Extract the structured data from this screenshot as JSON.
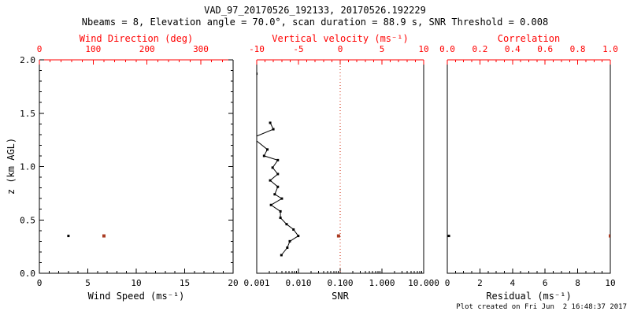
{
  "title": "VAD_97_20170526_192133, 20170526.192229",
  "subtitle": "Nbeams = 8, Elevation angle = 70.0°, scan duration = 88.9 s, SNR Threshold = 0.008",
  "footer": "Plot created on Fri Jun  2 16:48:37 2017",
  "colors": {
    "axis": "#000000",
    "axis_top": "#ff0000",
    "marker": "#000000",
    "marker_accent": "#aa3b22",
    "refline": "#cc2200",
    "background": "#ffffff"
  },
  "y_axis": {
    "title": "z (km AGL)",
    "min": 0,
    "max": 2,
    "minor_step": 0.1,
    "majors": [
      {
        "v": 0.0,
        "label": "0.0"
      },
      {
        "v": 0.5,
        "label": "0.5"
      },
      {
        "v": 1.0,
        "label": "1.0"
      },
      {
        "v": 1.5,
        "label": "1.5"
      },
      {
        "v": 2.0,
        "label": "2.0"
      }
    ]
  },
  "chart_data": [
    {
      "name": "wind",
      "type": "scatter",
      "show_y_ticks": true,
      "bottom_axis": {
        "title": "Wind Speed (ms⁻¹)",
        "min": 0,
        "max": 20,
        "scale": "linear",
        "minor_step": 1,
        "majors": [
          {
            "v": 0,
            "label": "0"
          },
          {
            "v": 5,
            "label": "5"
          },
          {
            "v": 10,
            "label": "10"
          },
          {
            "v": 15,
            "label": "15"
          },
          {
            "v": 20,
            "label": "20"
          }
        ]
      },
      "top_axis": {
        "title": "Wind Direction (deg)",
        "min": 0,
        "max": 360,
        "scale": "linear",
        "minor_step": 20,
        "majors": [
          {
            "v": 0,
            "label": "0"
          },
          {
            "v": 100,
            "label": "100"
          },
          {
            "v": 200,
            "label": "200"
          },
          {
            "v": 300,
            "label": "300"
          }
        ]
      },
      "series": [
        {
          "name": "wind-speed",
          "axis": "bottom",
          "color_key": "marker",
          "marker": 3,
          "line": false,
          "points": [
            [
              3.0,
              0.35
            ]
          ]
        },
        {
          "name": "wind-direction",
          "axis": "top",
          "color_key": "marker_accent",
          "marker": 4,
          "line": false,
          "points": [
            [
              120,
              0.35
            ]
          ]
        }
      ]
    },
    {
      "name": "snr",
      "type": "line",
      "show_y_ticks": false,
      "bottom_axis": {
        "title": "SNR",
        "min": 0.001,
        "max": 10,
        "scale": "log",
        "majors": [
          {
            "v": 0.001,
            "label": "0.001"
          },
          {
            "v": 0.01,
            "label": "0.010"
          },
          {
            "v": 0.1,
            "label": "0.100"
          },
          {
            "v": 1,
            "label": "1.000"
          },
          {
            "v": 10,
            "label": "10.000"
          }
        ]
      },
      "top_axis": {
        "title": "Vertical velocity (ms⁻¹)",
        "min": -10,
        "max": 10,
        "scale": "linear",
        "minor_step": 1,
        "majors": [
          {
            "v": -10,
            "label": "-10"
          },
          {
            "v": -5,
            "label": "-5"
          },
          {
            "v": 0,
            "label": "0"
          },
          {
            "v": 5,
            "label": "5"
          },
          {
            "v": 10,
            "label": "10"
          }
        ]
      },
      "refline": {
        "axis": "top",
        "value": 0
      },
      "series": [
        {
          "name": "snr-profile",
          "axis": "bottom",
          "color_key": "marker",
          "marker": 3,
          "line": true,
          "points": [
            [
              0.0039,
              0.17
            ],
            [
              0.0054,
              0.24
            ],
            [
              0.0062,
              0.3
            ],
            [
              0.0099,
              0.35
            ],
            [
              0.0076,
              0.41
            ],
            [
              0.0052,
              0.46
            ],
            [
              0.0037,
              0.52
            ],
            [
              0.0037,
              0.58
            ],
            [
              0.0022,
              0.64
            ],
            [
              0.004,
              0.7
            ],
            [
              0.0027,
              0.74
            ],
            [
              0.0032,
              0.81
            ],
            [
              0.0021,
              0.87
            ],
            [
              0.0032,
              0.93
            ],
            [
              0.0024,
              0.99
            ],
            [
              0.0032,
              1.06
            ],
            [
              0.0015,
              1.1
            ],
            [
              0.0018,
              1.16
            ],
            [
              0.0008,
              1.27
            ],
            [
              0.0025,
              1.35
            ],
            [
              0.0021,
              1.41
            ]
          ]
        },
        {
          "name": "snr-isolated-point",
          "axis": "bottom",
          "color_key": "marker",
          "marker": 3,
          "line": false,
          "points": [
            [
              0.00098,
              1.87
            ]
          ]
        },
        {
          "name": "vertical-velocity",
          "axis": "top",
          "color_key": "marker_accent",
          "marker": 4,
          "line": false,
          "points": [
            [
              -0.2,
              0.35
            ]
          ]
        }
      ]
    },
    {
      "name": "residual",
      "type": "scatter",
      "show_y_ticks": false,
      "bottom_axis": {
        "title": "Residual (ms⁻¹)",
        "min": 0,
        "max": 10,
        "scale": "linear",
        "minor_step": 0.5,
        "majors": [
          {
            "v": 0,
            "label": "0"
          },
          {
            "v": 2,
            "label": "2"
          },
          {
            "v": 4,
            "label": "4"
          },
          {
            "v": 6,
            "label": "6"
          },
          {
            "v": 8,
            "label": "8"
          },
          {
            "v": 10,
            "label": "10"
          }
        ]
      },
      "top_axis": {
        "title": "Correlation",
        "min": 0,
        "max": 1,
        "scale": "linear",
        "minor_step": 0.05,
        "majors": [
          {
            "v": 0,
            "label": "0.0"
          },
          {
            "v": 0.2,
            "label": "0.2"
          },
          {
            "v": 0.4,
            "label": "0.4"
          },
          {
            "v": 0.6,
            "label": "0.6"
          },
          {
            "v": 0.8,
            "label": "0.8"
          },
          {
            "v": 1,
            "label": "1.0"
          }
        ]
      },
      "series": [
        {
          "name": "residual",
          "axis": "bottom",
          "color_key": "marker",
          "marker": 3,
          "line": false,
          "points": [
            [
              0.1,
              0.35
            ]
          ]
        },
        {
          "name": "correlation",
          "axis": "top",
          "color_key": "marker_accent",
          "marker": 4,
          "line": false,
          "points": [
            [
              1.0,
              0.35
            ]
          ]
        }
      ]
    }
  ]
}
